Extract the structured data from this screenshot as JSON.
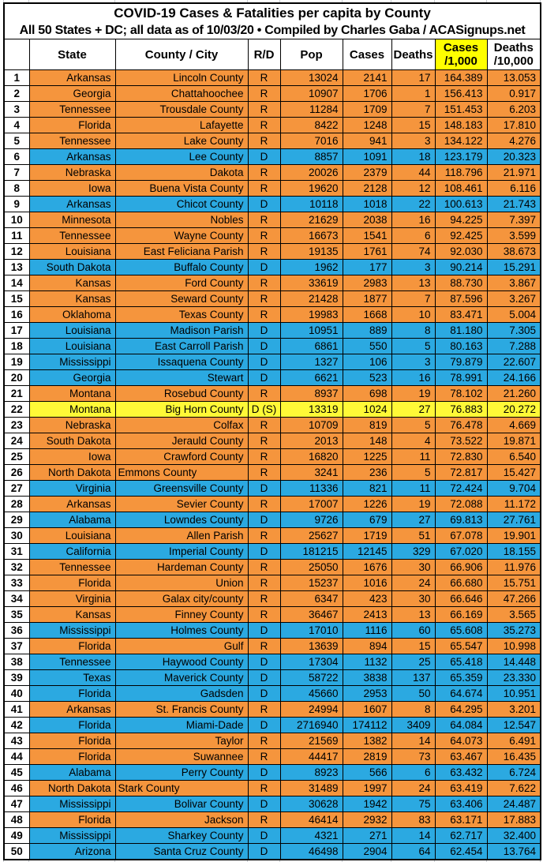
{
  "title": {
    "line1": "COVID-19 Cases & Fatalities per capita by County",
    "line2": "All 50 States + DC; all data as of 10/03/20  • Compiled by Charles Gaba / ACASignups.net"
  },
  "columns": [
    {
      "key": "num",
      "label": "",
      "sub": "",
      "highlight": false
    },
    {
      "key": "state",
      "label": "State",
      "sub": "",
      "highlight": false
    },
    {
      "key": "county",
      "label": "County / City",
      "sub": "",
      "highlight": false
    },
    {
      "key": "rd",
      "label": "R/D",
      "sub": "",
      "highlight": false
    },
    {
      "key": "pop",
      "label": "Pop",
      "sub": "",
      "highlight": false
    },
    {
      "key": "cases",
      "label": "Cases",
      "sub": "",
      "highlight": false
    },
    {
      "key": "deaths",
      "label": "Deaths",
      "sub": "",
      "highlight": false
    },
    {
      "key": "c1000",
      "label": "Cases",
      "sub": "/1,000",
      "highlight": true
    },
    {
      "key": "d10000",
      "label": "Deaths",
      "sub": "/10,000",
      "highlight": false
    }
  ],
  "colors": {
    "republican_fill": "#F5953D",
    "democrat_fill": "#2BA9E1",
    "swing_fill": "#FFF937",
    "header_highlight": "#FFFF00",
    "border": "#000000",
    "text": "#000000"
  },
  "rows": [
    {
      "rank": "1",
      "state": "Arkansas",
      "county": "Lincoln County",
      "rd": "R",
      "pop": "13024",
      "cases": "2141",
      "deaths": "17",
      "c1000": "164.389",
      "d10000": "13.053",
      "fill": "r",
      "county_align": "right"
    },
    {
      "rank": "2",
      "state": "Georgia",
      "county": "Chattahoochee",
      "rd": "R",
      "pop": "10907",
      "cases": "1706",
      "deaths": "1",
      "c1000": "156.413",
      "d10000": "0.917",
      "fill": "r",
      "county_align": "right"
    },
    {
      "rank": "3",
      "state": "Tennessee",
      "county": "Trousdale County",
      "rd": "R",
      "pop": "11284",
      "cases": "1709",
      "deaths": "7",
      "c1000": "151.453",
      "d10000": "6.203",
      "fill": "r",
      "county_align": "right"
    },
    {
      "rank": "4",
      "state": "Florida",
      "county": "Lafayette",
      "rd": "R",
      "pop": "8422",
      "cases": "1248",
      "deaths": "15",
      "c1000": "148.183",
      "d10000": "17.810",
      "fill": "r",
      "county_align": "right"
    },
    {
      "rank": "5",
      "state": "Tennessee",
      "county": "Lake County",
      "rd": "R",
      "pop": "7016",
      "cases": "941",
      "deaths": "3",
      "c1000": "134.122",
      "d10000": "4.276",
      "fill": "r",
      "county_align": "right"
    },
    {
      "rank": "6",
      "state": "Arkansas",
      "county": "Lee County",
      "rd": "D",
      "pop": "8857",
      "cases": "1091",
      "deaths": "18",
      "c1000": "123.179",
      "d10000": "20.323",
      "fill": "d",
      "county_align": "right"
    },
    {
      "rank": "7",
      "state": "Nebraska",
      "county": "Dakota",
      "rd": "R",
      "pop": "20026",
      "cases": "2379",
      "deaths": "44",
      "c1000": "118.796",
      "d10000": "21.971",
      "fill": "r",
      "county_align": "right"
    },
    {
      "rank": "8",
      "state": "Iowa",
      "county": "Buena Vista County",
      "rd": "R",
      "pop": "19620",
      "cases": "2128",
      "deaths": "12",
      "c1000": "108.461",
      "d10000": "6.116",
      "fill": "r",
      "county_align": "right"
    },
    {
      "rank": "9",
      "state": "Arkansas",
      "county": "Chicot County",
      "rd": "D",
      "pop": "10118",
      "cases": "1018",
      "deaths": "22",
      "c1000": "100.613",
      "d10000": "21.743",
      "fill": "d",
      "county_align": "right"
    },
    {
      "rank": "10",
      "state": "Minnesota",
      "county": "Nobles",
      "rd": "R",
      "pop": "21629",
      "cases": "2038",
      "deaths": "16",
      "c1000": "94.225",
      "d10000": "7.397",
      "fill": "r",
      "county_align": "right"
    },
    {
      "rank": "11",
      "state": "Tennessee",
      "county": "Wayne County",
      "rd": "R",
      "pop": "16673",
      "cases": "1541",
      "deaths": "6",
      "c1000": "92.425",
      "d10000": "3.599",
      "fill": "r",
      "county_align": "right"
    },
    {
      "rank": "12",
      "state": "Louisiana",
      "county": "East Feliciana Parish",
      "rd": "R",
      "pop": "19135",
      "cases": "1761",
      "deaths": "74",
      "c1000": "92.030",
      "d10000": "38.673",
      "fill": "r",
      "county_align": "right"
    },
    {
      "rank": "13",
      "state": "South Dakota",
      "county": "Buffalo County",
      "rd": "D",
      "pop": "1962",
      "cases": "177",
      "deaths": "3",
      "c1000": "90.214",
      "d10000": "15.291",
      "fill": "d",
      "county_align": "right"
    },
    {
      "rank": "14",
      "state": "Kansas",
      "county": "Ford County",
      "rd": "R",
      "pop": "33619",
      "cases": "2983",
      "deaths": "13",
      "c1000": "88.730",
      "d10000": "3.867",
      "fill": "r",
      "county_align": "right"
    },
    {
      "rank": "15",
      "state": "Kansas",
      "county": "Seward County",
      "rd": "R",
      "pop": "21428",
      "cases": "1877",
      "deaths": "7",
      "c1000": "87.596",
      "d10000": "3.267",
      "fill": "r",
      "county_align": "right"
    },
    {
      "rank": "16",
      "state": "Oklahoma",
      "county": "Texas County",
      "rd": "R",
      "pop": "19983",
      "cases": "1668",
      "deaths": "10",
      "c1000": "83.471",
      "d10000": "5.004",
      "fill": "r",
      "county_align": "right"
    },
    {
      "rank": "17",
      "state": "Louisiana",
      "county": "Madison Parish",
      "rd": "D",
      "pop": "10951",
      "cases": "889",
      "deaths": "8",
      "c1000": "81.180",
      "d10000": "7.305",
      "fill": "d",
      "county_align": "right"
    },
    {
      "rank": "18",
      "state": "Louisiana",
      "county": "East Carroll Parish",
      "rd": "D",
      "pop": "6861",
      "cases": "550",
      "deaths": "5",
      "c1000": "80.163",
      "d10000": "7.288",
      "fill": "d",
      "county_align": "right"
    },
    {
      "rank": "19",
      "state": "Mississippi",
      "county": "Issaquena County",
      "rd": "D",
      "pop": "1327",
      "cases": "106",
      "deaths": "3",
      "c1000": "79.879",
      "d10000": "22.607",
      "fill": "d",
      "county_align": "right"
    },
    {
      "rank": "20",
      "state": "Georgia",
      "county": "Stewart",
      "rd": "D",
      "pop": "6621",
      "cases": "523",
      "deaths": "16",
      "c1000": "78.991",
      "d10000": "24.166",
      "fill": "d",
      "county_align": "right"
    },
    {
      "rank": "21",
      "state": "Montana",
      "county": "Rosebud County",
      "rd": "R",
      "pop": "8937",
      "cases": "698",
      "deaths": "19",
      "c1000": "78.102",
      "d10000": "21.260",
      "fill": "r",
      "county_align": "right"
    },
    {
      "rank": "22",
      "state": "Montana",
      "county": "Big Horn County",
      "rd": "D (S)",
      "pop": "13319",
      "cases": "1024",
      "deaths": "27",
      "c1000": "76.883",
      "d10000": "20.272",
      "fill": "y",
      "county_align": "right"
    },
    {
      "rank": "23",
      "state": "Nebraska",
      "county": "Colfax",
      "rd": "R",
      "pop": "10709",
      "cases": "819",
      "deaths": "5",
      "c1000": "76.478",
      "d10000": "4.669",
      "fill": "r",
      "county_align": "right"
    },
    {
      "rank": "24",
      "state": "South Dakota",
      "county": "Jerauld County",
      "rd": "R",
      "pop": "2013",
      "cases": "148",
      "deaths": "4",
      "c1000": "73.522",
      "d10000": "19.871",
      "fill": "r",
      "county_align": "right"
    },
    {
      "rank": "25",
      "state": "Iowa",
      "county": "Crawford County",
      "rd": "R",
      "pop": "16820",
      "cases": "1225",
      "deaths": "11",
      "c1000": "72.830",
      "d10000": "6.540",
      "fill": "r",
      "county_align": "right"
    },
    {
      "rank": "26",
      "state": "North Dakota",
      "county": "Emmons County",
      "rd": "R",
      "pop": "3241",
      "cases": "236",
      "deaths": "5",
      "c1000": "72.817",
      "d10000": "15.427",
      "fill": "r",
      "county_align": "left"
    },
    {
      "rank": "27",
      "state": "Virginia",
      "county": "Greensville County",
      "rd": "D",
      "pop": "11336",
      "cases": "821",
      "deaths": "11",
      "c1000": "72.424",
      "d10000": "9.704",
      "fill": "d",
      "county_align": "right"
    },
    {
      "rank": "28",
      "state": "Arkansas",
      "county": "Sevier County",
      "rd": "R",
      "pop": "17007",
      "cases": "1226",
      "deaths": "19",
      "c1000": "72.088",
      "d10000": "11.172",
      "fill": "r",
      "county_align": "right"
    },
    {
      "rank": "29",
      "state": "Alabama",
      "county": "Lowndes County",
      "rd": "D",
      "pop": "9726",
      "cases": "679",
      "deaths": "27",
      "c1000": "69.813",
      "d10000": "27.761",
      "fill": "d",
      "county_align": "right"
    },
    {
      "rank": "30",
      "state": "Louisiana",
      "county": "Allen Parish",
      "rd": "R",
      "pop": "25627",
      "cases": "1719",
      "deaths": "51",
      "c1000": "67.078",
      "d10000": "19.901",
      "fill": "r",
      "county_align": "right"
    },
    {
      "rank": "31",
      "state": "California",
      "county": "Imperial County",
      "rd": "D",
      "pop": "181215",
      "cases": "12145",
      "deaths": "329",
      "c1000": "67.020",
      "d10000": "18.155",
      "fill": "d",
      "county_align": "right"
    },
    {
      "rank": "32",
      "state": "Tennessee",
      "county": "Hardeman County",
      "rd": "R",
      "pop": "25050",
      "cases": "1676",
      "deaths": "30",
      "c1000": "66.906",
      "d10000": "11.976",
      "fill": "r",
      "county_align": "right"
    },
    {
      "rank": "33",
      "state": "Florida",
      "county": "Union",
      "rd": "R",
      "pop": "15237",
      "cases": "1016",
      "deaths": "24",
      "c1000": "66.680",
      "d10000": "15.751",
      "fill": "r",
      "county_align": "right"
    },
    {
      "rank": "34",
      "state": "Virginia",
      "county": "Galax city/county",
      "rd": "R",
      "pop": "6347",
      "cases": "423",
      "deaths": "30",
      "c1000": "66.646",
      "d10000": "47.266",
      "fill": "r",
      "county_align": "right"
    },
    {
      "rank": "35",
      "state": "Kansas",
      "county": "Finney County",
      "rd": "R",
      "pop": "36467",
      "cases": "2413",
      "deaths": "13",
      "c1000": "66.169",
      "d10000": "3.565",
      "fill": "r",
      "county_align": "right"
    },
    {
      "rank": "36",
      "state": "Mississippi",
      "county": "Holmes County",
      "rd": "D",
      "pop": "17010",
      "cases": "1116",
      "deaths": "60",
      "c1000": "65.608",
      "d10000": "35.273",
      "fill": "d",
      "county_align": "right"
    },
    {
      "rank": "37",
      "state": "Florida",
      "county": "Gulf",
      "rd": "R",
      "pop": "13639",
      "cases": "894",
      "deaths": "15",
      "c1000": "65.547",
      "d10000": "10.998",
      "fill": "r",
      "county_align": "right"
    },
    {
      "rank": "38",
      "state": "Tennessee",
      "county": "Haywood County",
      "rd": "D",
      "pop": "17304",
      "cases": "1132",
      "deaths": "25",
      "c1000": "65.418",
      "d10000": "14.448",
      "fill": "d",
      "county_align": "right"
    },
    {
      "rank": "39",
      "state": "Texas",
      "county": "Maverick County",
      "rd": "D",
      "pop": "58722",
      "cases": "3838",
      "deaths": "137",
      "c1000": "65.359",
      "d10000": "23.330",
      "fill": "d",
      "county_align": "right"
    },
    {
      "rank": "40",
      "state": "Florida",
      "county": "Gadsden",
      "rd": "D",
      "pop": "45660",
      "cases": "2953",
      "deaths": "50",
      "c1000": "64.674",
      "d10000": "10.951",
      "fill": "d",
      "county_align": "right"
    },
    {
      "rank": "41",
      "state": "Arkansas",
      "county": "St. Francis County",
      "rd": "R",
      "pop": "24994",
      "cases": "1607",
      "deaths": "8",
      "c1000": "64.295",
      "d10000": "3.201",
      "fill": "r",
      "county_align": "right"
    },
    {
      "rank": "42",
      "state": "Florida",
      "county": "Miami-Dade",
      "rd": "D",
      "pop": "2716940",
      "cases": "174112",
      "deaths": "3409",
      "c1000": "64.084",
      "d10000": "12.547",
      "fill": "d",
      "county_align": "right"
    },
    {
      "rank": "43",
      "state": "Florida",
      "county": "Taylor",
      "rd": "R",
      "pop": "21569",
      "cases": "1382",
      "deaths": "14",
      "c1000": "64.073",
      "d10000": "6.491",
      "fill": "r",
      "county_align": "right"
    },
    {
      "rank": "44",
      "state": "Florida",
      "county": "Suwannee",
      "rd": "R",
      "pop": "44417",
      "cases": "2819",
      "deaths": "73",
      "c1000": "63.467",
      "d10000": "16.435",
      "fill": "r",
      "county_align": "right"
    },
    {
      "rank": "45",
      "state": "Alabama",
      "county": "Perry County",
      "rd": "D",
      "pop": "8923",
      "cases": "566",
      "deaths": "6",
      "c1000": "63.432",
      "d10000": "6.724",
      "fill": "d",
      "county_align": "right"
    },
    {
      "rank": "46",
      "state": "North Dakota",
      "county": "Stark County",
      "rd": "R",
      "pop": "31489",
      "cases": "1997",
      "deaths": "24",
      "c1000": "63.419",
      "d10000": "7.622",
      "fill": "r",
      "county_align": "left"
    },
    {
      "rank": "47",
      "state": "Mississippi",
      "county": "Bolivar County",
      "rd": "D",
      "pop": "30628",
      "cases": "1942",
      "deaths": "75",
      "c1000": "63.406",
      "d10000": "24.487",
      "fill": "d",
      "county_align": "right"
    },
    {
      "rank": "48",
      "state": "Florida",
      "county": "Jackson",
      "rd": "R",
      "pop": "46414",
      "cases": "2932",
      "deaths": "83",
      "c1000": "63.171",
      "d10000": "17.883",
      "fill": "r",
      "county_align": "right"
    },
    {
      "rank": "49",
      "state": "Mississippi",
      "county": "Sharkey County",
      "rd": "D",
      "pop": "4321",
      "cases": "271",
      "deaths": "14",
      "c1000": "62.717",
      "d10000": "32.400",
      "fill": "d",
      "county_align": "right"
    },
    {
      "rank": "50",
      "state": "Arizona",
      "county": "Santa Cruz County",
      "rd": "D",
      "pop": "46498",
      "cases": "2904",
      "deaths": "64",
      "c1000": "62.454",
      "d10000": "13.764",
      "fill": "d",
      "county_align": "right"
    }
  ]
}
